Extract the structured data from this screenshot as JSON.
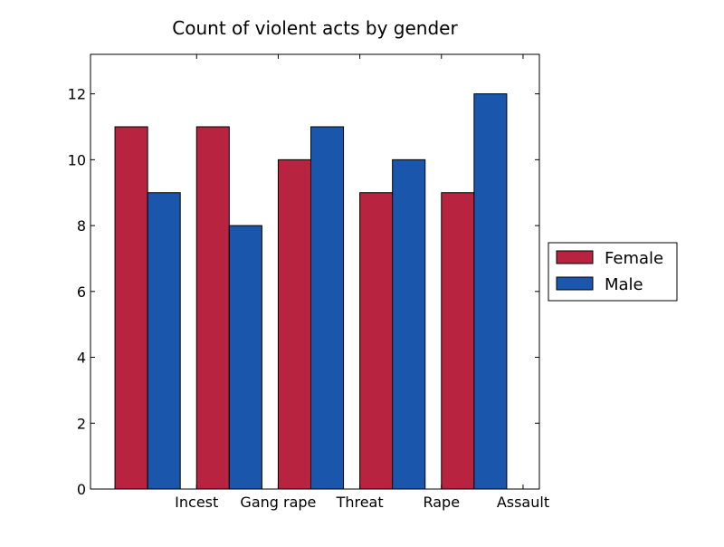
{
  "chart_data": {
    "type": "bar",
    "title": "Count of violent acts by gender",
    "xlabel": "",
    "ylabel": "",
    "categories": [
      "Incest",
      "Gang rape",
      "Threat",
      "Rape",
      "Assault"
    ],
    "series": [
      {
        "name": "Female",
        "color": "#b8243f",
        "values": [
          11,
          11,
          10,
          9,
          9
        ]
      },
      {
        "name": "Male",
        "color": "#1a56ac",
        "values": [
          9,
          8,
          11,
          10,
          12
        ]
      }
    ],
    "ylim": [
      0,
      13.2
    ],
    "yticks": [
      0,
      2,
      4,
      6,
      8,
      10,
      12
    ],
    "xlim": [
      -0.3,
      5.2
    ],
    "grid": false,
    "legend_position": "right"
  }
}
